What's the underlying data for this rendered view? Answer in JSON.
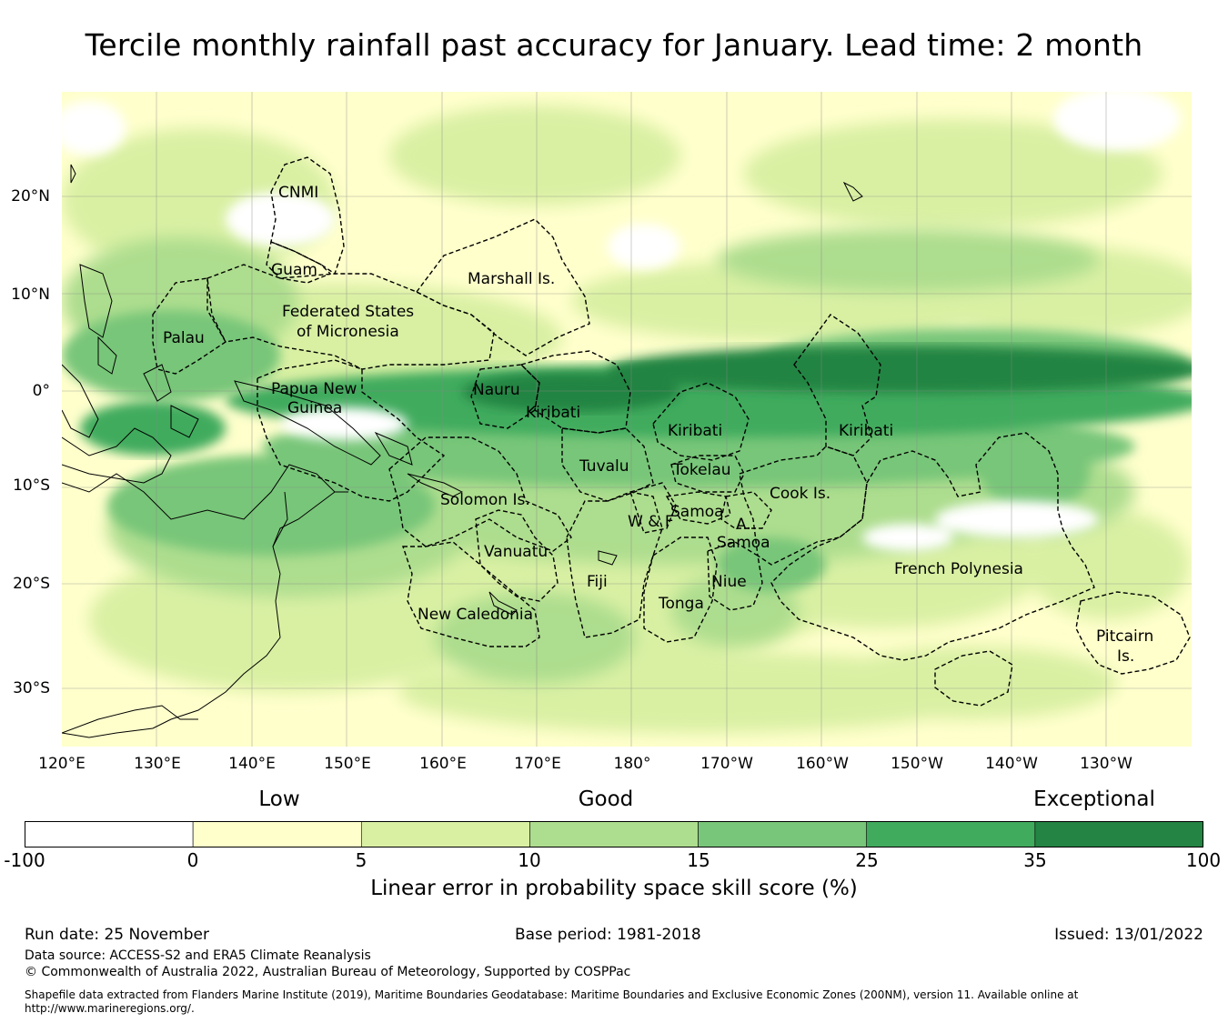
{
  "title": "Tercile monthly rainfall past accuracy for January. Lead time: 2 month",
  "map": {
    "lon_range": [
      120,
      239
    ],
    "lat_range": [
      -37,
      31
    ],
    "lat_ticks": [
      "20°N",
      "10°N",
      "0°",
      "10°S",
      "20°S",
      "30°S"
    ],
    "lon_ticks": [
      "120°E",
      "130°E",
      "140°E",
      "150°E",
      "160°E",
      "170°E",
      "180°",
      "170°W",
      "160°W",
      "150°W",
      "140°W",
      "130°W"
    ],
    "region_labels": {
      "cnmi": "CNMI",
      "guam": "Guam",
      "marshall": "Marshall Is.",
      "fsm": [
        "Federated States",
        "of Micronesia"
      ],
      "palau": "Palau",
      "png": [
        "Papua New",
        "Guinea"
      ],
      "nauru": "Nauru",
      "kiribati_w": "Kiribati",
      "kiribati_c": "Kiribati",
      "kiribati_e": "Kiribati",
      "tuvalu": "Tuvalu",
      "tokelau": "Tokelau",
      "solomon": "Solomon Is.",
      "cook": "Cook Is.",
      "samoa": "Samoa",
      "wf": "W & F",
      "asamoa": [
        "A.",
        "Samoa"
      ],
      "vanuatu": "Vanuatu",
      "fiji": "Fiji",
      "niue": "Niue",
      "tonga": "Tonga",
      "french_poly": "French Polynesia",
      "new_caledonia": "New Caledonia",
      "pitcairn": [
        "Pitcairn",
        "Is."
      ]
    }
  },
  "colorbar": {
    "categories": [
      "Low",
      "Good",
      "Exceptional"
    ],
    "bins": [
      {
        "from": "-100",
        "to": "0",
        "color": "#ffffff"
      },
      {
        "from": "0",
        "to": "5",
        "color": "#ffffcc"
      },
      {
        "from": "5",
        "to": "10",
        "color": "#d9f0a3"
      },
      {
        "from": "10",
        "to": "15",
        "color": "#addd8e"
      },
      {
        "from": "15",
        "to": "25",
        "color": "#78c679"
      },
      {
        "from": "25",
        "to": "35",
        "color": "#41ab5d"
      },
      {
        "from": "35",
        "to": "100",
        "color": "#238443"
      }
    ],
    "tick_labels": [
      "-100",
      "0",
      "5",
      "10",
      "15",
      "25",
      "35",
      "100"
    ],
    "label": "Linear error in probability space skill score (%)"
  },
  "footer": {
    "run_date": "Run date: 25 November",
    "base_period": "Base period: 1981-2018",
    "issued": "Issued: 13/01/2022",
    "data_source": "Data source: ACCESS-S2 and ERA5 Climate Reanalysis",
    "copyright": "© Commonwealth of Australia 2022, Australian Bureau of Meteorology, Supported by COSPPac",
    "shapefile_1": "Shapefile data extracted from Flanders Marine Institute (2019), Maritime Boundaries Geodatabase: Maritime Boundaries and Exclusive Economic Zones (200NM), version 11. Available online at",
    "shapefile_2": "http://www.marineregions.org/."
  }
}
